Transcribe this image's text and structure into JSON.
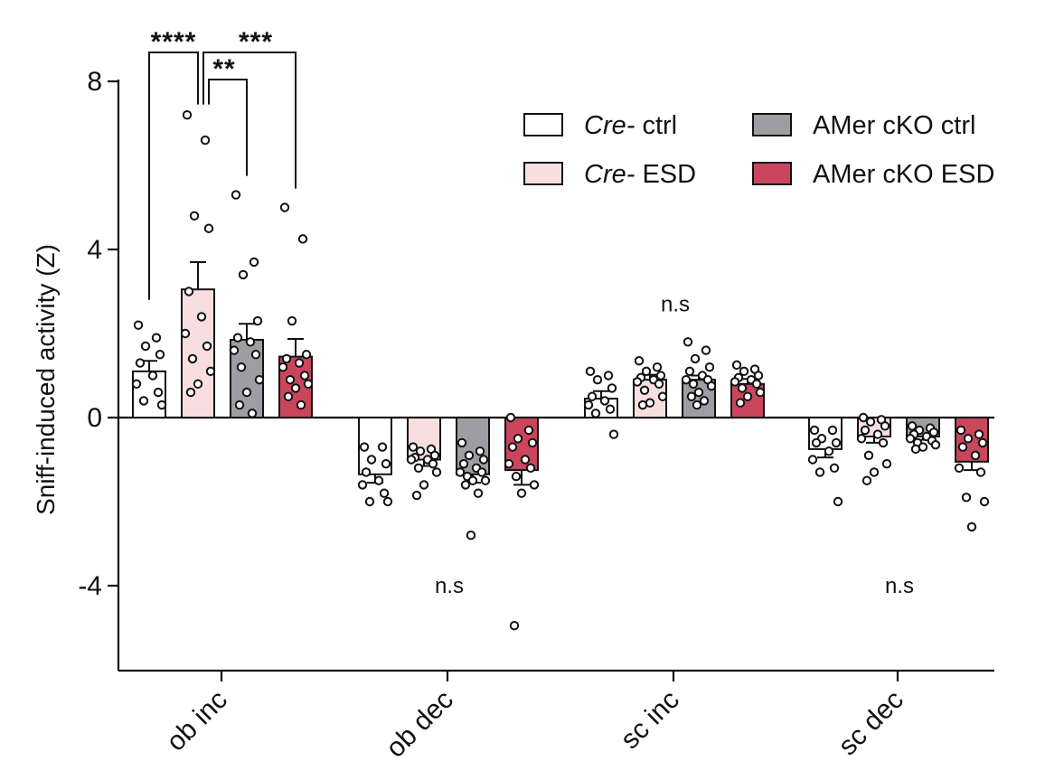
{
  "chart_data": {
    "type": "bar",
    "ylabel": "Sniff-induced activity (Z)",
    "ylim": [
      -6,
      8.5
    ],
    "yticks": [
      8,
      4,
      0,
      -4
    ],
    "yticklabels": [
      "8",
      "4",
      "0",
      "-4"
    ],
    "categories": [
      "ob inc",
      "ob dec",
      "sc inc",
      "sc dec"
    ],
    "series": [
      {
        "name_italic": "Cre-",
        "name_rest": " ctrl",
        "color": "#ffffff",
        "means": [
          1.1,
          -1.35,
          0.45,
          -0.75
        ],
        "sem": [
          0.25,
          0.2,
          0.18,
          0.2
        ],
        "points": [
          [
            2.2,
            1.9,
            1.7,
            1.5,
            1.3,
            1.0,
            0.8,
            0.6,
            0.4,
            0.3
          ],
          [
            -0.7,
            -0.7,
            -1.0,
            -1.1,
            -1.3,
            -1.5,
            -1.6,
            -1.8,
            -2.0,
            -2.0
          ],
          [
            1.1,
            1.0,
            0.9,
            0.7,
            0.5,
            0.4,
            0.3,
            0.2,
            0.1,
            -0.4
          ],
          [
            -0.3,
            -0.3,
            -0.5,
            -0.6,
            -0.6,
            -0.8,
            -1.0,
            -1.2,
            -1.3,
            -2.0
          ]
        ]
      },
      {
        "name_italic": "Cre-",
        "name_rest": " ESD",
        "color": "#f9dee0",
        "means": [
          3.05,
          -1.0,
          0.9,
          -0.45
        ],
        "sem": [
          0.65,
          0.15,
          0.12,
          0.15
        ],
        "points": [
          [
            7.2,
            6.6,
            4.8,
            4.5,
            3.0,
            2.4,
            2.0,
            1.7,
            1.4,
            1.1,
            0.8,
            0.6
          ],
          [
            -0.7,
            -0.75,
            -0.8,
            -0.9,
            -0.95,
            -1.0,
            -1.0,
            -1.1,
            -1.2,
            -1.3,
            -1.6,
            -1.85
          ],
          [
            1.35,
            1.2,
            1.1,
            1.0,
            0.95,
            0.9,
            0.85,
            0.8,
            0.65,
            0.5,
            0.35,
            0.3
          ],
          [
            0.0,
            -0.05,
            -0.1,
            -0.2,
            -0.3,
            -0.4,
            -0.5,
            -0.6,
            -0.9,
            -1.1,
            -1.3,
            -1.5
          ]
        ]
      },
      {
        "name_italic": "",
        "name_rest": "AMer cKO ctrl",
        "color": "#9d9ea3",
        "means": [
          1.85,
          -1.35,
          0.9,
          -0.45
        ],
        "sem": [
          0.38,
          0.2,
          0.1,
          0.08
        ],
        "points": [
          [
            5.3,
            3.7,
            3.4,
            2.3,
            1.9,
            1.8,
            1.6,
            1.5,
            1.2,
            0.9,
            0.6,
            0.3,
            0.1
          ],
          [
            -0.6,
            -0.8,
            -0.9,
            -1.0,
            -1.1,
            -1.2,
            -1.3,
            -1.3,
            -1.4,
            -1.5,
            -1.5,
            -1.6,
            -1.8,
            -2.8
          ],
          [
            1.8,
            1.6,
            1.4,
            1.2,
            1.1,
            1.0,
            0.9,
            0.9,
            0.8,
            0.75,
            0.6,
            0.5,
            0.4,
            0.3
          ],
          [
            -0.2,
            -0.25,
            -0.3,
            -0.35,
            -0.4,
            -0.45,
            -0.5,
            -0.55,
            -0.6,
            -0.65,
            -0.7,
            -0.75
          ]
        ]
      },
      {
        "name_italic": "",
        "name_rest": "AMer cKO ESD",
        "color": "#c9465c",
        "means": [
          1.45,
          -1.25,
          0.8,
          -1.05
        ],
        "sem": [
          0.42,
          0.35,
          0.12,
          0.2
        ],
        "points": [
          [
            5.0,
            4.25,
            2.3,
            1.5,
            1.4,
            1.3,
            1.2,
            1.0,
            0.9,
            0.8,
            0.7,
            0.5,
            0.3
          ],
          [
            0.0,
            -0.3,
            -0.5,
            -0.6,
            -0.7,
            -1.0,
            -1.1,
            -1.2,
            -1.4,
            -1.6,
            -1.8,
            -4.95
          ],
          [
            1.25,
            1.15,
            1.1,
            1.0,
            0.95,
            0.9,
            0.85,
            0.8,
            0.7,
            0.6,
            0.5,
            0.35
          ],
          [
            -0.3,
            -0.4,
            -0.5,
            -0.6,
            -0.7,
            -0.9,
            -1.2,
            -1.3,
            -1.9,
            -2.0,
            -2.6
          ]
        ]
      }
    ],
    "significance": [
      {
        "label": "****",
        "from_series": 0,
        "to_series": 1,
        "category": 0
      },
      {
        "label": "***",
        "from_series": 1,
        "to_series": 3,
        "category": 0
      },
      {
        "label": "**",
        "from_series": 1,
        "to_series": 2,
        "category": 0
      }
    ],
    "ns_annotations": [
      {
        "label": "n.s",
        "category": 1,
        "y": -4
      },
      {
        "label": "n.s",
        "category": 2,
        "y": 2.7
      },
      {
        "label": "n.s",
        "category": 3,
        "y": -4
      }
    ]
  }
}
